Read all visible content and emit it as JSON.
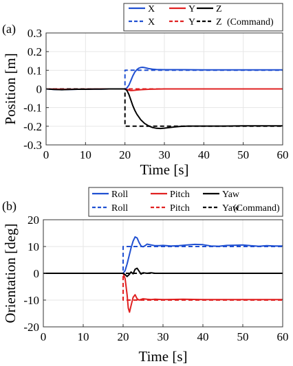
{
  "chart_data": [
    {
      "type": "line",
      "panel_label": "(a)",
      "xlabel": "Time [s]",
      "ylabel": "Position [m]",
      "xlim": [
        0,
        60
      ],
      "ylim": [
        -0.3,
        0.3
      ],
      "xticks": [
        0,
        10,
        20,
        30,
        40,
        50,
        60
      ],
      "yticks": [
        -0.3,
        -0.2,
        -0.1,
        0,
        0.1,
        0.2,
        0.3
      ],
      "ytick_labels": [
        "-0.3",
        "-0.2",
        "-0.1",
        "0",
        "0.1",
        "0.2",
        "0.3"
      ],
      "grid": true,
      "legend_position": "top",
      "command_suffix": "(Command)",
      "series": [
        {
          "name": "X",
          "style": "solid",
          "color": "#1f4fd1",
          "x": [
            0,
            2,
            4,
            6,
            8,
            10,
            12,
            14,
            16,
            18,
            20,
            20.5,
            21,
            21.5,
            22,
            22.5,
            23,
            23.5,
            24,
            24.5,
            25,
            26,
            27,
            28,
            30,
            35,
            40,
            45,
            50,
            55,
            60
          ],
          "y": [
            0,
            -0.003,
            -0.004,
            -0.003,
            -0.002,
            -0.002,
            -0.001,
            -0.001,
            0,
            0,
            0,
            0.005,
            0.02,
            0.045,
            0.07,
            0.09,
            0.103,
            0.111,
            0.115,
            0.116,
            0.114,
            0.109,
            0.106,
            0.104,
            0.103,
            0.103,
            0.102,
            0.102,
            0.102,
            0.102,
            0.102
          ]
        },
        {
          "name": "Y",
          "style": "solid",
          "color": "#e02020",
          "x": [
            0,
            5,
            10,
            15,
            20,
            20.5,
            21,
            21.5,
            22,
            23,
            24,
            26,
            28,
            30,
            35,
            40,
            45,
            50,
            55,
            60
          ],
          "y": [
            0,
            -0.002,
            -0.001,
            0,
            0,
            -0.003,
            -0.007,
            -0.009,
            -0.008,
            -0.006,
            -0.004,
            -0.002,
            -0.001,
            0,
            0,
            0,
            0,
            0,
            0,
            0
          ]
        },
        {
          "name": "Z",
          "style": "solid",
          "color": "#000000",
          "x": [
            0,
            2,
            4,
            6,
            8,
            10,
            12,
            14,
            16,
            18,
            20,
            20.5,
            21,
            21.5,
            22,
            22.5,
            23,
            24,
            25,
            26,
            27,
            28,
            29,
            30,
            32,
            34,
            36,
            40,
            45,
            50,
            55,
            60
          ],
          "y": [
            0,
            -0.003,
            -0.004,
            -0.003,
            -0.002,
            -0.002,
            -0.001,
            -0.001,
            0,
            0,
            0,
            -0.008,
            -0.03,
            -0.06,
            -0.09,
            -0.115,
            -0.135,
            -0.165,
            -0.185,
            -0.198,
            -0.207,
            -0.211,
            -0.212,
            -0.21,
            -0.205,
            -0.201,
            -0.199,
            -0.199,
            -0.199,
            -0.198,
            -0.198,
            -0.198
          ]
        },
        {
          "name": "X",
          "style": "dashed",
          "color": "#1f4fd1",
          "x": [
            0,
            20,
            20,
            60
          ],
          "y": [
            0,
            0,
            0.1,
            0.1
          ]
        },
        {
          "name": "Y",
          "style": "dashed",
          "color": "#e02020",
          "x": [
            0,
            60
          ],
          "y": [
            0,
            0
          ]
        },
        {
          "name": "Z",
          "style": "dashed",
          "color": "#000000",
          "x": [
            0,
            20,
            20,
            60
          ],
          "y": [
            0,
            0,
            -0.2,
            -0.2
          ]
        }
      ]
    },
    {
      "type": "line",
      "panel_label": "(b)",
      "xlabel": "Time [s]",
      "ylabel": "Orientation [deg]",
      "xlim": [
        0,
        60
      ],
      "ylim": [
        -20,
        20
      ],
      "xticks": [
        0,
        10,
        20,
        30,
        40,
        50,
        60
      ],
      "yticks": [
        -20,
        -10,
        0,
        10,
        20
      ],
      "ytick_labels": [
        "-20",
        "-10",
        "0",
        "10",
        "20"
      ],
      "grid": true,
      "legend_position": "top",
      "command_suffix": "(Command)",
      "series": [
        {
          "name": "Roll",
          "style": "solid",
          "color": "#1f4fd1",
          "x": [
            0,
            10,
            20,
            20.5,
            21,
            21.5,
            22,
            22.5,
            23,
            23.5,
            24,
            24.5,
            25,
            25.5,
            26,
            27,
            28,
            29,
            30,
            32,
            34,
            36,
            38,
            40,
            42,
            44,
            46,
            48,
            50,
            52,
            54,
            56,
            58,
            60
          ],
          "y": [
            0,
            0,
            0,
            1,
            3.5,
            6.5,
            9.5,
            12,
            13.6,
            13.2,
            11.5,
            10.2,
            9.9,
            10.3,
            10.9,
            10.6,
            10.3,
            10.3,
            10.4,
            10.2,
            10.3,
            10.6,
            10.8,
            10.7,
            10.2,
            10.1,
            10.4,
            10.5,
            10.6,
            10.3,
            10.1,
            10.3,
            10.2,
            10.2
          ]
        },
        {
          "name": "Pitch",
          "style": "solid",
          "color": "#e02020",
          "x": [
            0,
            10,
            20,
            20.5,
            21,
            21.3,
            21.6,
            22,
            22.5,
            23,
            23.5,
            24,
            25,
            26,
            27,
            28,
            30,
            35,
            40,
            45,
            50,
            55,
            60
          ],
          "y": [
            0,
            0,
            0,
            -2,
            -8,
            -13,
            -14.5,
            -12,
            -9,
            -8,
            -9.5,
            -10,
            -9.5,
            -9.7,
            -9.8,
            -9.7,
            -9.8,
            -9.7,
            -9.8,
            -9.8,
            -9.8,
            -9.8,
            -9.8
          ]
        },
        {
          "name": "Yaw",
          "style": "solid",
          "color": "#000000",
          "x": [
            0,
            10,
            20,
            20.5,
            21,
            21.5,
            22,
            22.5,
            23,
            23.5,
            24,
            24.5,
            25,
            26,
            27,
            28,
            30,
            35,
            40,
            45,
            50,
            55,
            60
          ],
          "y": [
            0,
            0,
            0,
            -0.5,
            -1.2,
            -0.5,
            0.5,
            -0.2,
            1.5,
            1.9,
            0.8,
            -0.3,
            0.2,
            0,
            0.2,
            0,
            0,
            0,
            0,
            0,
            0,
            0,
            0
          ]
        },
        {
          "name": "Roll",
          "style": "dashed",
          "color": "#1f4fd1",
          "x": [
            0,
            20,
            20,
            60
          ],
          "y": [
            0,
            0,
            10,
            10
          ]
        },
        {
          "name": "Pitch",
          "style": "dashed",
          "color": "#e02020",
          "x": [
            0,
            20,
            20,
            60
          ],
          "y": [
            0,
            0,
            -10,
            -10
          ]
        },
        {
          "name": "Yaw",
          "style": "dashed",
          "color": "#000000",
          "x": [
            0,
            60
          ],
          "y": [
            0,
            0
          ]
        }
      ]
    }
  ]
}
